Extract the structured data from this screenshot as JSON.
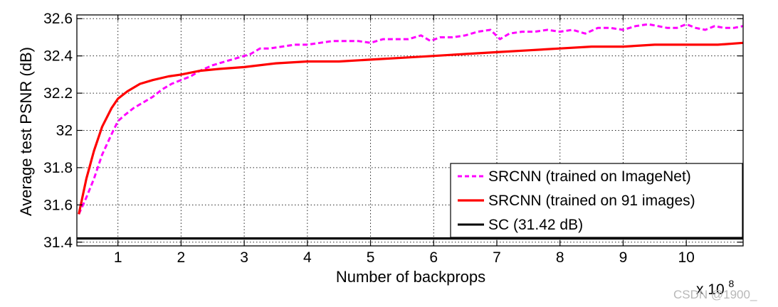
{
  "chart_data": {
    "type": "line",
    "xlabel": "Number of backprops",
    "ylabel": "Average test PSNR (dB)",
    "x_scale_label": "x 10",
    "x_scale_exponent": "8",
    "xlim": [
      0.35,
      10.9
    ],
    "ylim": [
      31.38,
      32.62
    ],
    "xticks": [
      1,
      2,
      3,
      4,
      5,
      6,
      7,
      8,
      9,
      10
    ],
    "yticks": [
      31.4,
      31.6,
      31.8,
      32,
      32.2,
      32.4,
      32.6
    ],
    "ytick_labels": [
      "31.4",
      "31.6",
      "31.8",
      "32",
      "32.2",
      "32.4",
      "32.6"
    ],
    "grid": true,
    "legend_position": "bottom-right",
    "series": [
      {
        "name": "SRCNN (trained on ImageNet)",
        "color": "#ff00ff",
        "style": "dashed",
        "x": [
          0.38,
          0.5,
          0.62,
          0.75,
          0.9,
          1.0,
          1.1,
          1.25,
          1.4,
          1.55,
          1.7,
          1.85,
          2.0,
          2.15,
          2.3,
          2.5,
          2.7,
          2.9,
          3.1,
          3.25,
          3.4,
          3.6,
          3.8,
          4.0,
          4.2,
          4.4,
          4.6,
          4.8,
          5.0,
          5.2,
          5.4,
          5.6,
          5.8,
          5.95,
          6.1,
          6.3,
          6.5,
          6.7,
          6.9,
          7.05,
          7.2,
          7.4,
          7.6,
          7.8,
          8.0,
          8.2,
          8.4,
          8.6,
          8.8,
          9.0,
          9.2,
          9.4,
          9.55,
          9.7,
          9.85,
          10.0,
          10.15,
          10.3,
          10.45,
          10.6,
          10.75,
          10.9
        ],
        "values": [
          31.55,
          31.64,
          31.74,
          31.87,
          31.98,
          32.05,
          32.08,
          32.12,
          32.15,
          32.18,
          32.22,
          32.25,
          32.27,
          32.29,
          32.32,
          32.35,
          32.37,
          32.39,
          32.41,
          32.44,
          32.44,
          32.45,
          32.46,
          32.46,
          32.47,
          32.48,
          32.48,
          32.48,
          32.47,
          32.49,
          32.49,
          32.49,
          32.51,
          32.48,
          32.5,
          32.5,
          32.51,
          32.53,
          32.54,
          32.49,
          32.52,
          32.53,
          32.53,
          32.54,
          32.53,
          32.54,
          32.52,
          32.55,
          32.55,
          32.54,
          32.56,
          32.57,
          32.56,
          32.55,
          32.55,
          32.57,
          32.55,
          32.54,
          32.56,
          32.55,
          32.55,
          32.56
        ]
      },
      {
        "name": "SRCNN (trained on 91 images)",
        "color": "#ff0000",
        "style": "solid",
        "x": [
          0.38,
          0.5,
          0.62,
          0.75,
          0.9,
          1.0,
          1.15,
          1.35,
          1.55,
          1.8,
          2.0,
          2.3,
          2.6,
          3.0,
          3.5,
          4.0,
          4.5,
          5.0,
          5.5,
          6.0,
          6.5,
          7.0,
          7.5,
          8.0,
          8.5,
          9.0,
          9.5,
          10.0,
          10.5,
          10.9
        ],
        "values": [
          31.55,
          31.74,
          31.89,
          32.02,
          32.12,
          32.17,
          32.21,
          32.25,
          32.27,
          32.29,
          32.3,
          32.32,
          32.33,
          32.34,
          32.36,
          32.37,
          32.37,
          32.38,
          32.39,
          32.4,
          32.41,
          32.42,
          32.43,
          32.44,
          32.45,
          32.45,
          32.46,
          32.46,
          32.46,
          32.47
        ]
      },
      {
        "name": "SC (31.42 dB)",
        "color": "#000000",
        "style": "solid",
        "x": [
          0.35,
          10.9
        ],
        "values": [
          31.42,
          31.42
        ]
      }
    ]
  },
  "watermark": "CSDN @1900_"
}
